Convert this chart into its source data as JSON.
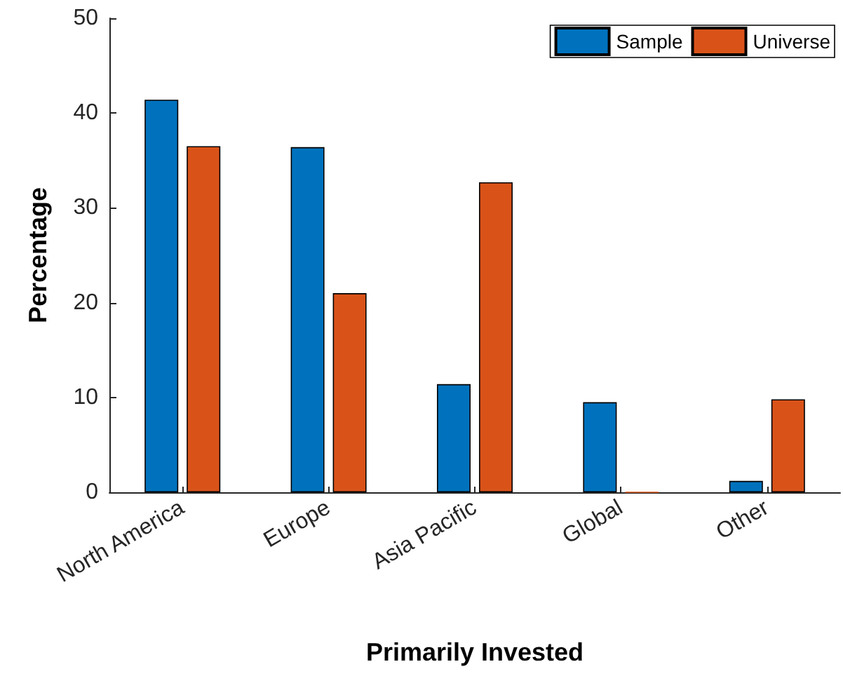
{
  "chart_data": {
    "type": "bar",
    "xlabel": "Primarily Invested",
    "ylabel": "Percentage",
    "categories": [
      "North America",
      "Europe",
      "Asia Pacific",
      "Global",
      "Other"
    ],
    "series": [
      {
        "name": "Sample",
        "color": "#0072bd",
        "values": [
          41.4,
          36.4,
          11.4,
          9.5,
          1.2
        ]
      },
      {
        "name": "Universe",
        "color": "#d95319",
        "values": [
          36.5,
          21.0,
          32.7,
          0,
          9.8
        ]
      }
    ],
    "ylim": [
      0,
      50
    ],
    "yticks": [
      0,
      10,
      20,
      30,
      40,
      50
    ],
    "grid": false,
    "legend": "top right"
  }
}
